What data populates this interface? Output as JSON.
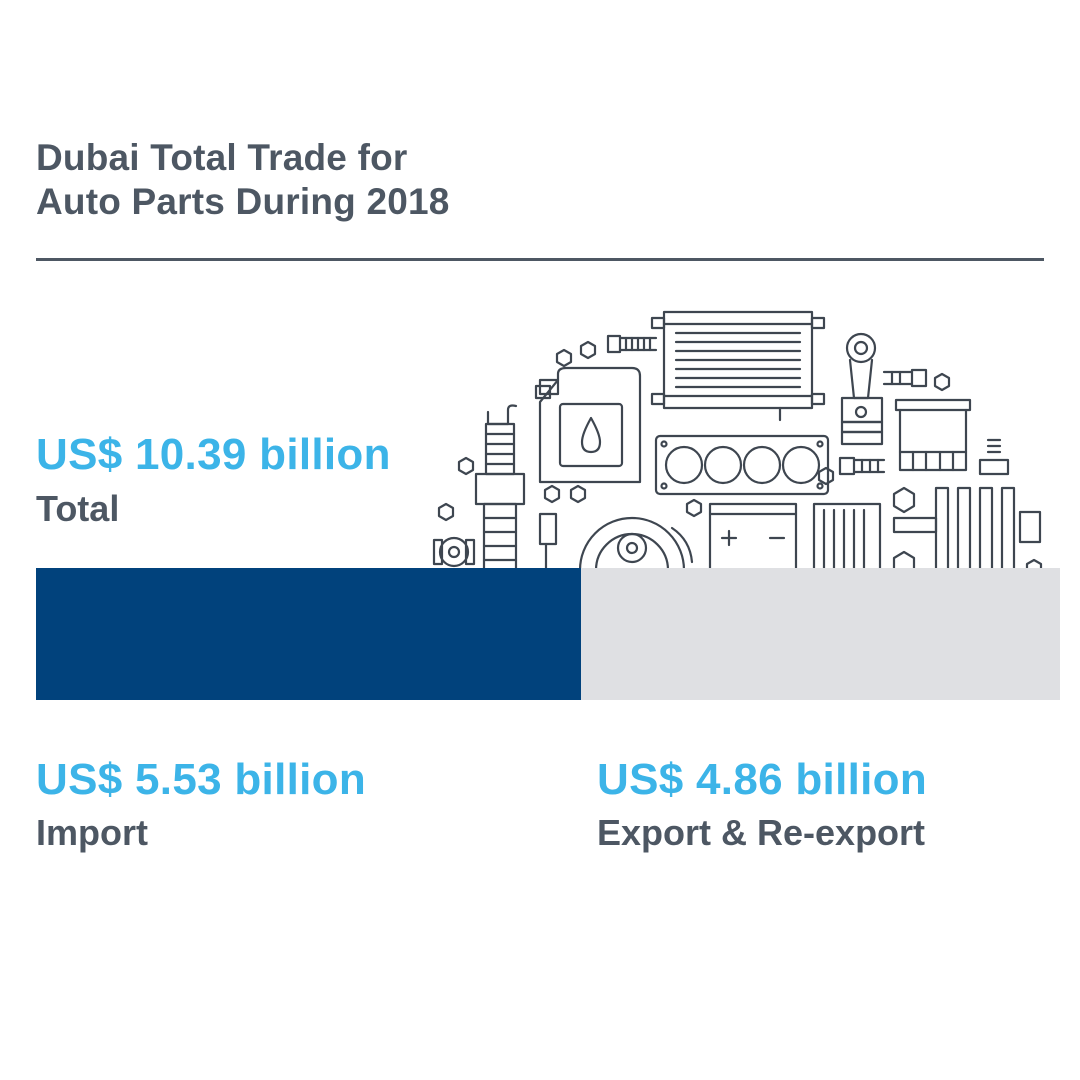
{
  "title": {
    "line1": "Dubai Total Trade for",
    "line2": "Auto Parts During 2018"
  },
  "total": {
    "value_text": "US$ 10.39 billion",
    "label": "Total"
  },
  "import": {
    "value_text": "US$ 5.53 billion",
    "label": "Import"
  },
  "export": {
    "value_text": "US$ 4.86 billion",
    "label": "Export & Re-export"
  },
  "colors": {
    "import_bar": "#01427c",
    "export_bar": "#dfe0e3",
    "value_text": "#3cb4e8",
    "label_text": "#4d5763",
    "illustration_line": "#3e4650"
  },
  "illustration_icons": [
    "spark-plug-icon",
    "oil-can-icon",
    "radiator-icon",
    "piston-icon",
    "oil-filter-icon",
    "head-gasket-icon",
    "brake-disc-icon",
    "battery-icon",
    "air-filter-icon",
    "crankshaft-icon",
    "nut-icon",
    "bolt-icon"
  ],
  "chart_data": {
    "type": "bar",
    "orientation": "horizontal-stacked",
    "title": "Dubai Total Trade for Auto Parts During 2018",
    "total": 10.39,
    "unit": "US$ billion",
    "series": [
      {
        "name": "Import",
        "values": [
          5.53
        ]
      },
      {
        "name": "Export & Re-export",
        "values": [
          4.86
        ]
      }
    ]
  }
}
